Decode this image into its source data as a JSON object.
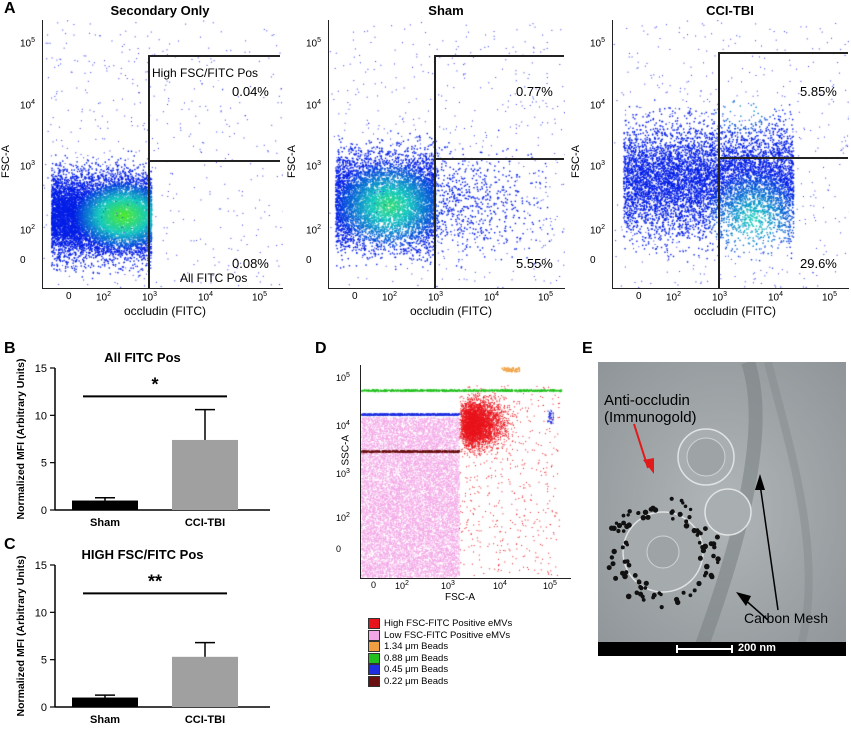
{
  "panels": {
    "A": "A",
    "B": "B",
    "C": "C",
    "D": "D",
    "E": "E"
  },
  "flow": {
    "titles": [
      "Secondary Only",
      "Sham",
      "CCI-TBI"
    ],
    "ylabel": "FSC-A",
    "xlabel": "occludin (FITC)",
    "y_ticks": [
      "10^5",
      "10^4",
      "10^3",
      "10^2",
      "0"
    ],
    "x_ticks": [
      "0",
      "10^2",
      "10^3",
      "10^4",
      "10^5"
    ],
    "gate_label_high": "High FSC/FITC Pos",
    "gate_label_all": "All FITC Pos",
    "upper_pcts": [
      "0.04%",
      "0.77%",
      "5.85%"
    ],
    "lower_pcts": [
      "0.08%",
      "5.55%",
      "29.6%"
    ]
  },
  "chart_data": [
    {
      "type": "bar",
      "title": "All FITC Pos",
      "categories": [
        "Sham",
        "CCI-TBI"
      ],
      "values": [
        1.0,
        7.4
      ],
      "errors": [
        0.3,
        3.2
      ],
      "colors": [
        "#000000",
        "#a0a0a0"
      ],
      "ylabel": "Normalized MFI (Arbitrary Units)",
      "ylim": [
        0,
        15
      ],
      "yticks": [
        0,
        5,
        10,
        15
      ],
      "significance": "*"
    },
    {
      "type": "bar",
      "title": "HIGH FSC/FITC Pos",
      "categories": [
        "Sham",
        "CCI-TBI"
      ],
      "values": [
        1.0,
        5.3
      ],
      "errors": [
        0.25,
        1.5
      ],
      "colors": [
        "#000000",
        "#a0a0a0"
      ],
      "ylabel": "Normalized MFI (Arbitrary Units)",
      "ylim": [
        0,
        15
      ],
      "yticks": [
        0,
        5,
        10,
        15
      ],
      "significance": "**"
    }
  ],
  "scatter_d": {
    "ylabel": "SSC-A",
    "xlabel": "FSC-A",
    "y_ticks": [
      "10^5",
      "10^4",
      "10^3",
      "10^2",
      "0"
    ],
    "x_ticks": [
      "0",
      "10^2",
      "10^3",
      "10^4",
      "10^5"
    ],
    "legend": [
      {
        "label": "High FSC-FITC Positive eMVs",
        "color": "#e8141c"
      },
      {
        "label": "Low FSC-FITC Positive eMVs",
        "color": "#f2a6e6"
      },
      {
        "label": "1.34 μm Beads",
        "color": "#f0a040"
      },
      {
        "label": "0.88 μm Beads",
        "color": "#22c01e"
      },
      {
        "label": "0.45 μm Beads",
        "color": "#1f2ee0"
      },
      {
        "label": "0.22 μm Beads",
        "color": "#6b1010"
      }
    ]
  },
  "em": {
    "label_title": "Anti-occludin",
    "label_sub": "(Immunogold)",
    "label_mesh": "Carbon Mesh",
    "scale": "200 nm"
  }
}
